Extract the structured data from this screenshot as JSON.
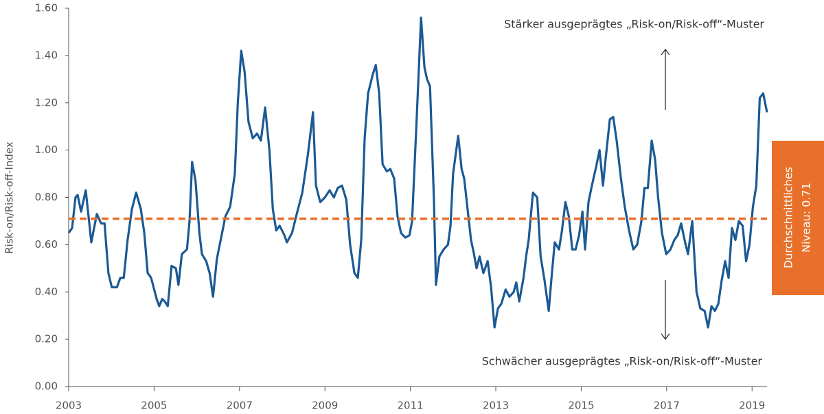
{
  "chart_data": {
    "type": "line",
    "y_label": "Risk-on/Risk-off-Index",
    "color": "#1b5a94",
    "x": [
      2003.0,
      2003.08,
      2003.16,
      2003.21,
      2003.29,
      2003.4,
      2003.53,
      2003.66,
      2003.76,
      2003.84,
      2003.93,
      2004.01,
      2004.13,
      2004.21,
      2004.29,
      2004.38,
      2004.48,
      2004.58,
      2004.69,
      2004.77,
      2004.85,
      2004.93,
      2005.06,
      2005.12,
      2005.19,
      2005.25,
      2005.32,
      2005.41,
      2005.51,
      2005.57,
      2005.65,
      2005.77,
      2005.83,
      2005.89,
      2005.97,
      2006.06,
      2006.12,
      2006.22,
      2006.3,
      2006.38,
      2006.47,
      2006.57,
      2006.67,
      2006.78,
      2006.89,
      2006.96,
      2007.04,
      2007.12,
      2007.21,
      2007.31,
      2007.41,
      2007.5,
      2007.6,
      2007.7,
      2007.78,
      2007.86,
      2007.94,
      2008.05,
      2008.11,
      2008.23,
      2008.34,
      2008.47,
      2008.6,
      2008.72,
      2008.79,
      2008.89,
      2009.0,
      2009.11,
      2009.21,
      2009.3,
      2009.4,
      2009.5,
      2009.59,
      2009.69,
      2009.77,
      2009.85,
      2009.93,
      2010.01,
      2010.12,
      2010.19,
      2010.27,
      2010.35,
      2010.45,
      2010.53,
      2010.62,
      2010.7,
      2010.78,
      2010.88,
      2010.98,
      2011.04,
      2011.14,
      2011.25,
      2011.33,
      2011.39,
      2011.46,
      2011.55,
      2011.6,
      2011.68,
      2011.78,
      2011.88,
      2011.94,
      2012.0,
      2012.12,
      2012.2,
      2012.26,
      2012.34,
      2012.42,
      2012.49,
      2012.55,
      2012.62,
      2012.71,
      2012.81,
      2012.89,
      2012.97,
      2013.05,
      2013.13,
      2013.23,
      2013.32,
      2013.42,
      2013.48,
      2013.55,
      2013.65,
      2013.71,
      2013.77,
      2013.87,
      2013.97,
      2014.05,
      2014.14,
      2014.24,
      2014.3,
      2014.38,
      2014.48,
      2014.55,
      2014.63,
      2014.71,
      2014.79,
      2014.87,
      2014.95,
      2015.03,
      2015.09,
      2015.17,
      2015.25,
      2015.35,
      2015.43,
      2015.51,
      2015.57,
      2015.67,
      2015.75,
      2015.83,
      2015.93,
      2016.02,
      2016.12,
      2016.22,
      2016.31,
      2016.41,
      2016.48,
      2016.56,
      2016.65,
      2016.73,
      2016.8,
      2016.89,
      2016.99,
      2017.09,
      2017.18,
      2017.26,
      2017.34,
      2017.42,
      2017.5,
      2017.6,
      2017.7,
      2017.79,
      2017.89,
      2017.97,
      2018.05,
      2018.13,
      2018.21,
      2018.29,
      2018.37,
      2018.45,
      2018.53,
      2018.61,
      2018.69,
      2018.78,
      2018.86,
      2018.94,
      2019.02,
      2019.1,
      2019.18,
      2019.26,
      2019.35
    ],
    "values": [
      0.65,
      0.67,
      0.8,
      0.81,
      0.74,
      0.83,
      0.61,
      0.73,
      0.69,
      0.69,
      0.48,
      0.42,
      0.42,
      0.46,
      0.46,
      0.62,
      0.75,
      0.82,
      0.75,
      0.65,
      0.48,
      0.46,
      0.37,
      0.34,
      0.37,
      0.36,
      0.34,
      0.51,
      0.5,
      0.43,
      0.56,
      0.58,
      0.7,
      0.95,
      0.87,
      0.65,
      0.56,
      0.53,
      0.48,
      0.38,
      0.54,
      0.63,
      0.72,
      0.76,
      0.9,
      1.2,
      1.42,
      1.33,
      1.12,
      1.05,
      1.07,
      1.04,
      1.18,
      1.0,
      0.75,
      0.66,
      0.68,
      0.64,
      0.61,
      0.65,
      0.73,
      0.82,
      0.98,
      1.16,
      0.85,
      0.78,
      0.8,
      0.83,
      0.8,
      0.84,
      0.85,
      0.79,
      0.6,
      0.48,
      0.46,
      0.62,
      1.05,
      1.24,
      1.32,
      1.36,
      1.24,
      0.94,
      0.91,
      0.92,
      0.88,
      0.72,
      0.65,
      0.63,
      0.64,
      0.7,
      1.1,
      1.56,
      1.35,
      1.3,
      1.27,
      0.8,
      0.43,
      0.55,
      0.58,
      0.6,
      0.68,
      0.9,
      1.06,
      0.92,
      0.88,
      0.75,
      0.62,
      0.56,
      0.5,
      0.55,
      0.48,
      0.53,
      0.42,
      0.25,
      0.33,
      0.35,
      0.41,
      0.38,
      0.4,
      0.44,
      0.36,
      0.46,
      0.55,
      0.62,
      0.82,
      0.8,
      0.55,
      0.45,
      0.32,
      0.45,
      0.61,
      0.58,
      0.66,
      0.78,
      0.72,
      0.58,
      0.58,
      0.64,
      0.74,
      0.58,
      0.78,
      0.85,
      0.93,
      1.0,
      0.85,
      0.96,
      1.13,
      1.14,
      1.04,
      0.88,
      0.76,
      0.66,
      0.58,
      0.6,
      0.7,
      0.84,
      0.84,
      1.04,
      0.96,
      0.8,
      0.65,
      0.56,
      0.58,
      0.62,
      0.64,
      0.69,
      0.62,
      0.56,
      0.7,
      0.4,
      0.33,
      0.32,
      0.25,
      0.34,
      0.32,
      0.35,
      0.45,
      0.53,
      0.46,
      0.67,
      0.62,
      0.7,
      0.68,
      0.53,
      0.6,
      0.76,
      0.85,
      1.22,
      1.24,
      1.16
    ],
    "xlim": [
      2003,
      2019.35
    ],
    "xticks": [
      2003,
      2005,
      2007,
      2009,
      2011,
      2013,
      2015,
      2017,
      2019
    ],
    "ylim": [
      0,
      1.6
    ],
    "yticks": [
      {
        "value": 0,
        "label": "0.00"
      },
      {
        "value": 0.2,
        "label": "0.20"
      },
      {
        "value": 0.4,
        "label": "0.40"
      },
      {
        "value": 0.6,
        "label": "0.60"
      },
      {
        "value": 0.8,
        "label": "0.80"
      },
      {
        "value": 1,
        "label": "1.00"
      },
      {
        "value": 1.2,
        "label": "1.20"
      },
      {
        "value": 1.4,
        "label": "1.40"
      },
      {
        "value": 1.6,
        "label": "1.60"
      }
    ],
    "reference": {
      "value": 0.71,
      "color": "#e8702a",
      "label_lines": [
        "Durchschnittliches",
        "Niveau: 0.71"
      ]
    },
    "annotations": [
      "Stärker ausgeprägtes „Risk-on/Risk-off“-Muster",
      "Schwächer ausgeprägtes „Risk-on/Risk-off“-Muster"
    ]
  }
}
